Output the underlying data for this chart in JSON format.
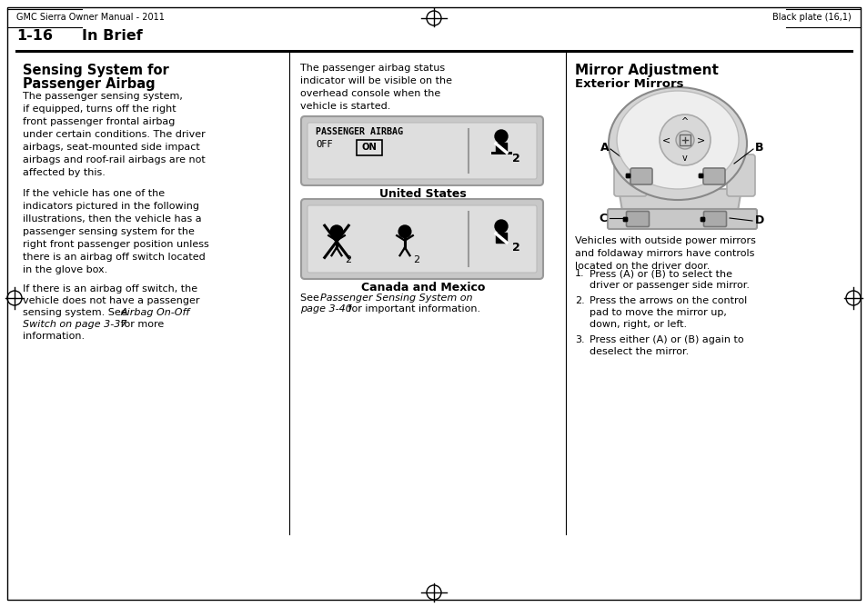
{
  "bg_color": "#ffffff",
  "header_left": "GMC Sierra Owner Manual - 2011",
  "header_right": "Black plate (16,1)",
  "section_label": "1-16",
  "section_title": "In Brief",
  "col1_h1": "Sensing System for\nPassenger Airbag",
  "col1_p1": "The passenger sensing system,\nif equipped, turns off the right\nfront passenger frontal airbag\nunder certain conditions. The driver\nairbags, seat-mounted side impact\nairbags and roof-rail airbags are not\naffected by this.",
  "col1_p2": "If the vehicle has one of the\nindicators pictured in the following\nillustrations, then the vehicle has a\npassenger sensing system for the\nright front passenger position unless\nthere is an airbag off switch located\nin the glove box.",
  "col1_p3a": "If there is an airbag off switch, the\nvehicle does not have a passenger\nsensing system. See ",
  "col1_p3b": "Airbag On-Off\nSwitch on page 3-37",
  "col1_p3c": " for more\ninformation.",
  "col2_p1": "The passenger airbag status\nindicator will be visible on the\noverhead console when the\nvehicle is started.",
  "col2_us_label": "United States",
  "col2_can_label": "Canada and Mexico",
  "col2_see1": "See ",
  "col2_see2": "Passenger Sensing System on\npage 3-40",
  "col2_see3": " for important information.",
  "col3_h1": "Mirror Adjustment",
  "col3_h2": "Exterior Mirrors",
  "col3_p1": "Vehicles with outside power mirrors\nand foldaway mirrors have controls\nlocated on the driver door.",
  "col3_i1a": "Press (A) or (B) to select the\ndriver or passenger side mirror.",
  "col3_i2a": "Press the arrows on the control\npad to move the mirror up,\ndown, right, or left.",
  "col3_i3a": "Press either (A) or (B) again to\ndeselect the mirror."
}
